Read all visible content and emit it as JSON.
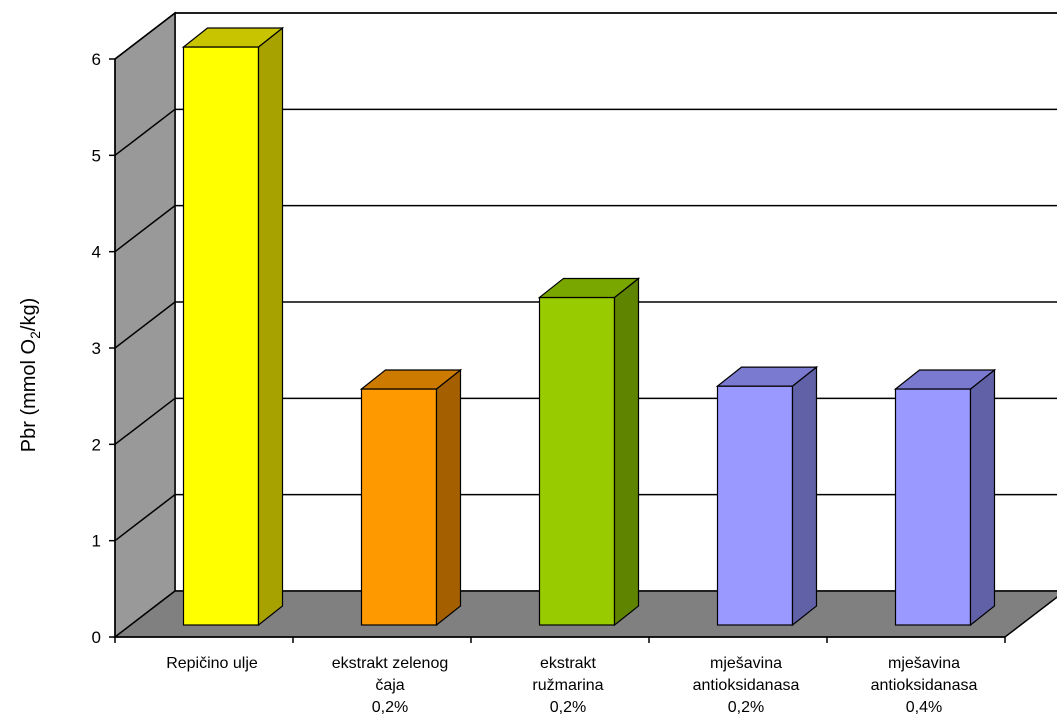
{
  "chart_data": {
    "type": "bar",
    "categories": [
      [
        "Repičino ulje"
      ],
      [
        "ekstrakt zelenog",
        "čaja",
        "0,2%"
      ],
      [
        "ekstrakt",
        "ružmarina",
        "0,2%"
      ],
      [
        "mješavina",
        "antioksidanasa",
        "0,2%"
      ],
      [
        "mješavina",
        "antioksidanasa",
        "0,4%"
      ]
    ],
    "values": [
      6.0,
      2.45,
      3.4,
      2.48,
      2.45
    ],
    "ylabel": "Pbr (mmol O",
    "ylabel_sub": "2",
    "ylabel_end": "/kg)",
    "ylim": [
      0,
      6
    ],
    "yticks": [
      "0",
      "1",
      "2",
      "3",
      "4",
      "5",
      "6"
    ],
    "grid": true,
    "bar_colors": [
      {
        "front": "#ffff00",
        "side": "#a8a200",
        "top": "#c8c400"
      },
      {
        "front": "#ff9900",
        "side": "#a45f00",
        "top": "#cc7a00"
      },
      {
        "front": "#99cc00",
        "side": "#5e8400",
        "top": "#7aa600"
      },
      {
        "front": "#9999ff",
        "side": "#6161a8",
        "top": "#7a7ad0"
      },
      {
        "front": "#9999ff",
        "side": "#6161a8",
        "top": "#7a7ad0"
      }
    ],
    "wall_color": "#999999",
    "floor_color": "#808080"
  }
}
